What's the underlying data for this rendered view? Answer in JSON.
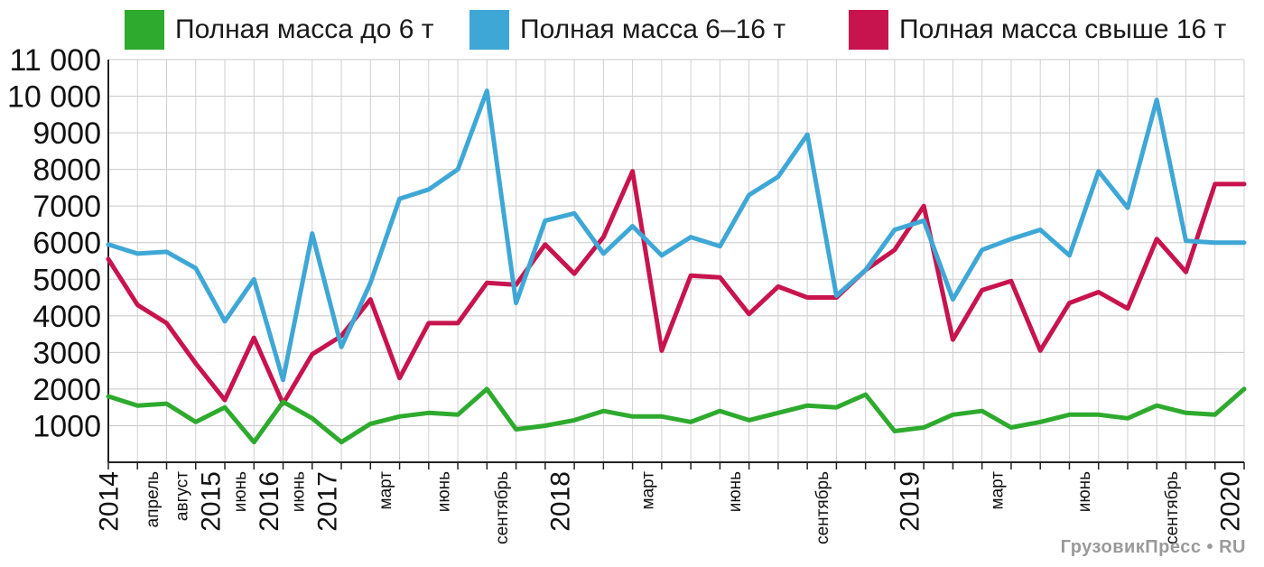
{
  "legend": [
    {
      "label": "Полная масса до 6 т",
      "color": "#2eaa2e"
    },
    {
      "label": "Полная масса 6–16 т",
      "color": "#3fa7d6"
    },
    {
      "label": "Полная масса свыше 16 т",
      "color": "#c8144e"
    }
  ],
  "watermark": "ГрузовикПресс • RU",
  "chart_data": {
    "type": "line",
    "ylim": [
      0,
      11000
    ],
    "y_ticks": [
      1000,
      2000,
      3000,
      4000,
      5000,
      6000,
      7000,
      8000,
      9000,
      10000,
      11000
    ],
    "y_tick_labels": [
      "1000",
      "2000",
      "3000",
      "4000",
      "5000",
      "6000",
      "7000",
      "8000",
      "9000",
      "10 000",
      "11 000"
    ],
    "grid": true,
    "legend_position": "top",
    "x_count": 40,
    "x_labels": [
      {
        "index": 0,
        "text": "2014",
        "big": true
      },
      {
        "index": 1.5,
        "text": "апрель",
        "big": false
      },
      {
        "index": 2.5,
        "text": "август",
        "big": false
      },
      {
        "index": 3.5,
        "text": "2015",
        "big": true
      },
      {
        "index": 4.5,
        "text": "июнь",
        "big": false
      },
      {
        "index": 5.5,
        "text": "2016",
        "big": true
      },
      {
        "index": 6.5,
        "text": "июнь",
        "big": false
      },
      {
        "index": 7.5,
        "text": "2017",
        "big": true
      },
      {
        "index": 9.5,
        "text": "март",
        "big": false
      },
      {
        "index": 11.5,
        "text": "июнь",
        "big": false
      },
      {
        "index": 13.5,
        "text": "сентябрь",
        "big": false
      },
      {
        "index": 15.5,
        "text": "2018",
        "big": true
      },
      {
        "index": 18.5,
        "text": "март",
        "big": false
      },
      {
        "index": 21.5,
        "text": "июнь",
        "big": false
      },
      {
        "index": 24.5,
        "text": "сентябрь",
        "big": false
      },
      {
        "index": 27.5,
        "text": "2019",
        "big": true
      },
      {
        "index": 30.5,
        "text": "март",
        "big": false
      },
      {
        "index": 33.5,
        "text": "июнь",
        "big": false
      },
      {
        "index": 36.5,
        "text": "сентябрь",
        "big": false
      },
      {
        "index": 38.5,
        "text": "2020",
        "big": true
      }
    ],
    "series": [
      {
        "name": "Полная масса до 6 т",
        "color": "#2eaa2e",
        "values": [
          1800,
          1550,
          1600,
          1100,
          1500,
          550,
          1650,
          1200,
          550,
          1050,
          1250,
          1350,
          1300,
          2000,
          900,
          1000,
          1150,
          1400,
          1250,
          1250,
          1100,
          1400,
          1150,
          1350,
          1550,
          1500,
          1850,
          850,
          950,
          1300,
          1400,
          950,
          1100,
          1300,
          1300,
          1200,
          1550,
          1350,
          1300,
          2000
        ]
      },
      {
        "name": "Полная масса 6–16 т",
        "color": "#3fa7d6",
        "values": [
          5950,
          5700,
          5750,
          5300,
          3850,
          5000,
          2250,
          6250,
          3150,
          4900,
          7200,
          7450,
          8000,
          10150,
          4350,
          6600,
          6800,
          5700,
          6450,
          5650,
          6150,
          5900,
          7300,
          7800,
          8950,
          4550,
          5250,
          6350,
          6600,
          4450,
          5800,
          6100,
          6350,
          5650,
          7950,
          6950,
          9900,
          6050,
          6000,
          6000
        ]
      },
      {
        "name": "Полная масса свыше 16 т",
        "color": "#c8144e",
        "values": [
          5550,
          4300,
          3800,
          2700,
          1700,
          3400,
          1600,
          2950,
          3450,
          4450,
          2300,
          3800,
          3800,
          4900,
          4850,
          5950,
          5150,
          6150,
          7950,
          3050,
          5100,
          5050,
          4050,
          4800,
          4500,
          4500,
          5250,
          5800,
          7000,
          3350,
          4700,
          4950,
          3050,
          4350,
          4650,
          4200,
          6100,
          5200,
          7600,
          7600
        ]
      }
    ]
  }
}
